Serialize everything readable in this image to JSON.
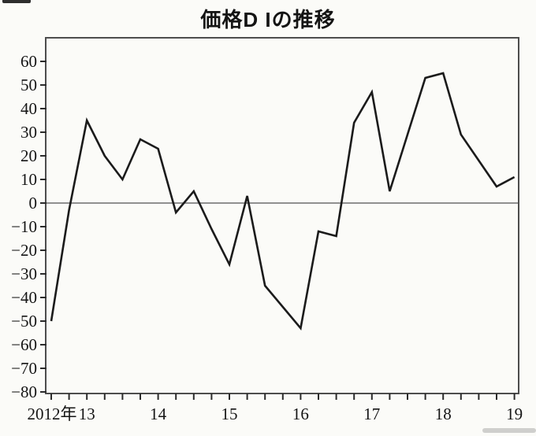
{
  "chart_data": {
    "type": "line",
    "title": "価格D Iの推移",
    "x_labels": [
      "2012Q3",
      "2012Q4",
      "2013Q1",
      "2013Q2",
      "2013Q3",
      "2013Q4",
      "2014Q1",
      "2014Q2",
      "2014Q3",
      "2014Q4",
      "2015Q1",
      "2015Q2",
      "2015Q3",
      "2015Q4",
      "2016Q1",
      "2016Q2",
      "2016Q3",
      "2016Q4",
      "2017Q1",
      "2017Q2",
      "2017Q3",
      "2017Q4",
      "2018Q1",
      "2018Q2",
      "2018Q3",
      "2018Q4",
      "2019Q1"
    ],
    "values": [
      -50,
      -3,
      35,
      20,
      10,
      27,
      23,
      -4,
      5,
      -11,
      -26,
      3,
      -35,
      -44,
      -53,
      -12,
      -14,
      34,
      47,
      5,
      29,
      53,
      55,
      29,
      18,
      7,
      11
    ],
    "x_axis": {
      "origin_label": "2012年",
      "year_labels": [
        "13",
        "14",
        "15",
        "16",
        "17",
        "18",
        "19"
      ],
      "tick_interval": "quarter"
    },
    "y_axis": {
      "min": -80,
      "max": 60,
      "step": 10,
      "zero_line": true
    },
    "grid": false,
    "legend_position": "none",
    "colors": {
      "line": "#1b1b1b",
      "axis_box": "#4d4d4d",
      "tick": "#2b2b2b",
      "zero_line": "#909090",
      "text": "#151515",
      "background": "#fbfbf8"
    }
  }
}
